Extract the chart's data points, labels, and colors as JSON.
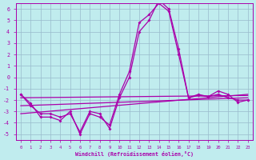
{
  "xlabel": "Windchill (Refroidissement éolien,°C)",
  "xlim": [
    -0.5,
    23.5
  ],
  "ylim": [
    -5.5,
    6.5
  ],
  "xticks": [
    0,
    1,
    2,
    3,
    4,
    5,
    6,
    7,
    8,
    9,
    10,
    11,
    12,
    13,
    14,
    15,
    16,
    17,
    18,
    19,
    20,
    21,
    22,
    23
  ],
  "yticks": [
    -5,
    -4,
    -3,
    -2,
    -1,
    0,
    1,
    2,
    3,
    4,
    5,
    6
  ],
  "bg_color": "#c0ecee",
  "line_color": "#aa00aa",
  "grid_color": "#99bbcc",
  "line1_x": [
    0,
    1,
    2,
    3,
    4,
    5,
    6,
    7,
    8,
    9,
    10,
    11,
    12,
    13,
    14,
    15,
    16,
    17,
    18,
    19,
    20,
    21,
    22,
    23
  ],
  "line1_y": [
    -1.5,
    -2.3,
    -3.5,
    -3.5,
    -3.8,
    -3.0,
    -5.0,
    -3.2,
    -3.5,
    -4.2,
    -1.5,
    0.5,
    4.8,
    5.5,
    6.5,
    5.8,
    2.0,
    -1.8,
    -1.6,
    -1.7,
    -1.5,
    -1.8,
    -2.0,
    -2.0
  ],
  "line2_x": [
    0,
    1,
    2,
    3,
    4,
    5,
    6,
    7,
    8,
    9,
    10,
    11,
    12,
    13,
    14,
    15,
    16,
    17,
    18,
    19,
    20,
    21,
    22,
    23
  ],
  "line2_y": [
    -1.5,
    -2.5,
    -3.2,
    -3.2,
    -3.5,
    -3.2,
    -4.8,
    -3.0,
    -3.2,
    -4.5,
    -1.8,
    0.0,
    4.0,
    5.0,
    6.8,
    6.0,
    2.5,
    -1.8,
    -1.5,
    -1.7,
    -1.2,
    -1.5,
    -2.2,
    -2.0
  ],
  "trend1_x": [
    0,
    23
  ],
  "trend1_y": [
    -1.8,
    -1.6
  ],
  "trend2_x": [
    0,
    23
  ],
  "trend2_y": [
    -2.5,
    -1.8
  ],
  "trend3_x": [
    0,
    23
  ],
  "trend3_y": [
    -3.2,
    -1.5
  ]
}
